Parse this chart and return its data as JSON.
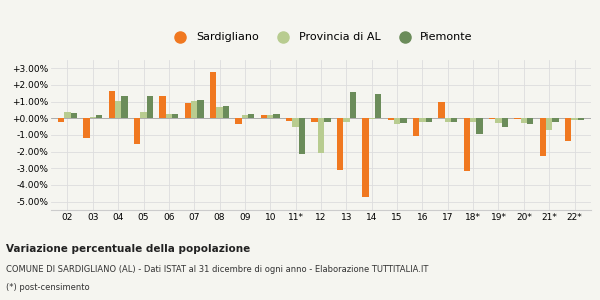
{
  "years": [
    "02",
    "03",
    "04",
    "05",
    "06",
    "07",
    "08",
    "09",
    "10",
    "11*",
    "12",
    "13",
    "14",
    "15",
    "16",
    "17",
    "18*",
    "19*",
    "20*",
    "21*",
    "22*"
  ],
  "sardigliano": [
    -0.2,
    -1.2,
    1.65,
    -1.55,
    1.35,
    0.9,
    2.75,
    -0.35,
    0.2,
    -0.15,
    -0.2,
    -3.1,
    -4.75,
    -0.1,
    -1.05,
    1.0,
    -3.15,
    -0.05,
    -0.05,
    -2.25,
    -1.35
  ],
  "provincia_al": [
    0.35,
    0.1,
    1.05,
    0.35,
    0.25,
    1.05,
    0.65,
    0.2,
    0.2,
    -0.55,
    -2.1,
    -0.2,
    -0.05,
    -0.35,
    -0.2,
    -0.2,
    -0.2,
    -0.3,
    -0.3,
    -0.7,
    -0.1
  ],
  "piemonte": [
    0.3,
    0.2,
    1.35,
    1.35,
    0.25,
    1.1,
    0.75,
    0.25,
    0.25,
    -2.15,
    -0.2,
    1.55,
    1.45,
    -0.3,
    -0.25,
    -0.25,
    -0.95,
    -0.5,
    -0.35,
    -0.25,
    -0.1
  ],
  "sardigliano_color": "#f07820",
  "provincia_al_color": "#b8cc90",
  "piemonte_color": "#6b8c5a",
  "background_color": "#f5f5f0",
  "grid_color": "#dddddd",
  "ylim": [
    -5.5,
    3.5
  ],
  "yticks": [
    -5.0,
    -4.0,
    -3.0,
    -2.0,
    -1.0,
    0.0,
    1.0,
    2.0,
    3.0
  ],
  "title": "Variazione percentuale della popolazione",
  "subtitle": "COMUNE DI SARDIGLIANO (AL) - Dati ISTAT al 31 dicembre di ogni anno - Elaborazione TUTTITALIA.IT",
  "footnote": "(*) post-censimento",
  "legend_sardigliano": "Sardigliano",
  "legend_provincia": "Provincia di AL",
  "legend_piemonte": "Piemonte"
}
